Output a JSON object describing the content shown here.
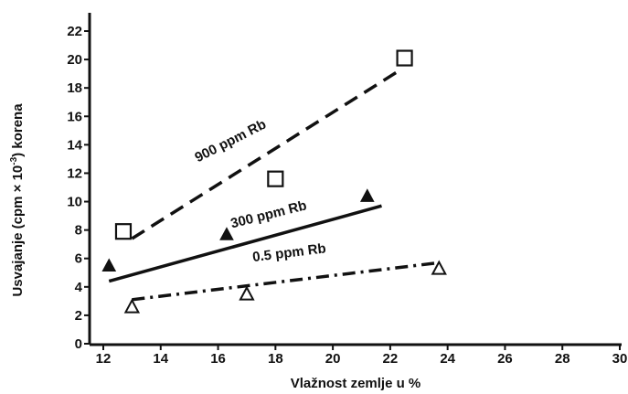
{
  "chart_data": {
    "type": "scatter",
    "xlabel": "Vlažnost zemlje u %",
    "ylabel": {
      "prefix": "Usvajanje (cpm × 10",
      "sup": "-3",
      "suffix": ") korena"
    },
    "xlim": [
      11.8,
      30
    ],
    "ylim": [
      0,
      22
    ],
    "xticks": [
      12,
      14,
      16,
      18,
      20,
      22,
      24,
      26,
      28,
      30
    ],
    "yticks": [
      0,
      2,
      4,
      6,
      8,
      10,
      12,
      14,
      16,
      18,
      20,
      22
    ],
    "grid": false,
    "series": [
      {
        "name": "900 ppm Rb",
        "marker": "open-square",
        "points": [
          [
            12.7,
            7.9
          ],
          [
            18.0,
            11.6
          ],
          [
            22.5,
            20.1
          ]
        ],
        "fit": [
          [
            13.0,
            7.4
          ],
          [
            22.3,
            19.2
          ]
        ],
        "line_style": "dashed",
        "label_at": [
          16.5,
          14.0
        ],
        "label_angle": -27
      },
      {
        "name": "300 ppm Rb",
        "marker": "filled-triangle",
        "points": [
          [
            12.2,
            5.5
          ],
          [
            16.3,
            7.7
          ],
          [
            21.2,
            10.4
          ]
        ],
        "fit": [
          [
            12.2,
            4.4
          ],
          [
            21.7,
            9.7
          ]
        ],
        "line_style": "solid",
        "label_at": [
          17.8,
          8.8
        ],
        "label_angle": -14
      },
      {
        "name": "0.5 ppm Rb",
        "marker": "open-triangle",
        "points": [
          [
            13.0,
            2.6
          ],
          [
            17.0,
            3.5
          ],
          [
            23.7,
            5.3
          ]
        ],
        "fit": [
          [
            13.0,
            3.1
          ],
          [
            23.7,
            5.7
          ]
        ],
        "line_style": "dash-dot",
        "label_at": [
          18.5,
          6.1
        ],
        "label_angle": -7
      }
    ]
  }
}
